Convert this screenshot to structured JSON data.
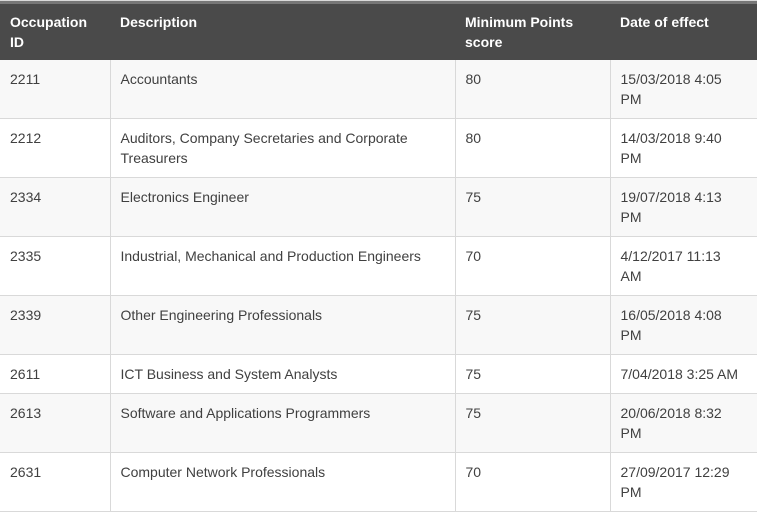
{
  "table": {
    "columns": [
      {
        "key": "occupation_id",
        "label": "Occupation ID"
      },
      {
        "key": "description",
        "label": "Description"
      },
      {
        "key": "min_points",
        "label": "Minimum Points score"
      },
      {
        "key": "date_of_effect",
        "label": "Date of effect"
      }
    ],
    "rows": [
      {
        "occupation_id": "2211",
        "description": "Accountants",
        "min_points": "80",
        "date_of_effect": "15/03/2018 4:05 PM"
      },
      {
        "occupation_id": "2212",
        "description": "Auditors, Company Secretaries and Corporate Treasurers",
        "min_points": "80",
        "date_of_effect": "14/03/2018 9:40 PM"
      },
      {
        "occupation_id": "2334",
        "description": "Electronics Engineer",
        "min_points": "75",
        "date_of_effect": "19/07/2018 4:13 PM"
      },
      {
        "occupation_id": "2335",
        "description": "Industrial, Mechanical and Production Engineers",
        "min_points": "70",
        "date_of_effect": "4/12/2017 11:13 AM"
      },
      {
        "occupation_id": "2339",
        "description": "Other Engineering Professionals",
        "min_points": "75",
        "date_of_effect": "16/05/2018 4:08 PM"
      },
      {
        "occupation_id": "2611",
        "description": "ICT Business and System Analysts",
        "min_points": "75",
        "date_of_effect": "7/04/2018 3:25 AM"
      },
      {
        "occupation_id": "2613",
        "description": "Software and Applications Programmers",
        "min_points": "75",
        "date_of_effect": "20/06/2018 8:32 PM"
      },
      {
        "occupation_id": "2631",
        "description": "Computer Network Professionals",
        "min_points": "70",
        "date_of_effect": "27/09/2017 12:29 PM"
      }
    ]
  },
  "colors": {
    "header_bg": "#4a4a4a",
    "header_top_band": "#777777",
    "header_text": "#ffffff",
    "body_text": "#404040",
    "border": "#d9d9d9",
    "top_line": "#d9d9d9",
    "row_odd_bg": "#f8f8f8",
    "row_even_bg": "#ffffff"
  }
}
